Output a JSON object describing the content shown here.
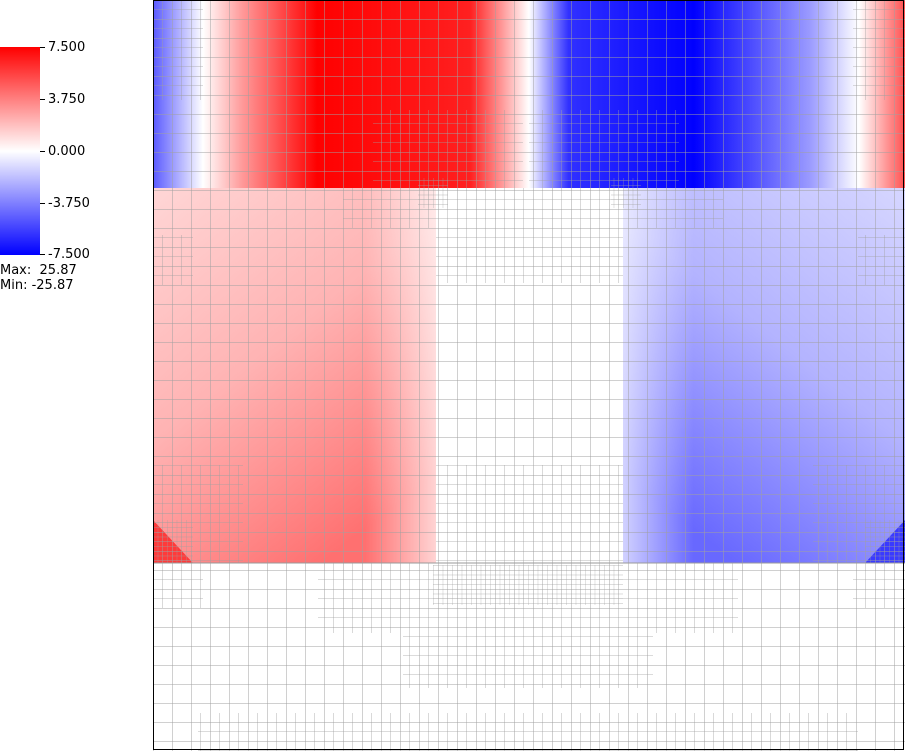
{
  "legend": {
    "ticks": [
      "7.500",
      "3.750",
      "0.000",
      "-3.750",
      "-7.500"
    ],
    "max_label": "Max:",
    "max_value": "25.87",
    "min_label": "Min:",
    "min_value": "-25.87",
    "colors": {
      "high": "#ff0000",
      "mid": "#ffffff",
      "low": "#0000ff"
    }
  },
  "field": {
    "range": [
      -7.5,
      7.5
    ],
    "colormap": "blue-white-red diverging",
    "mesh_color": "#a0a0a0"
  }
}
